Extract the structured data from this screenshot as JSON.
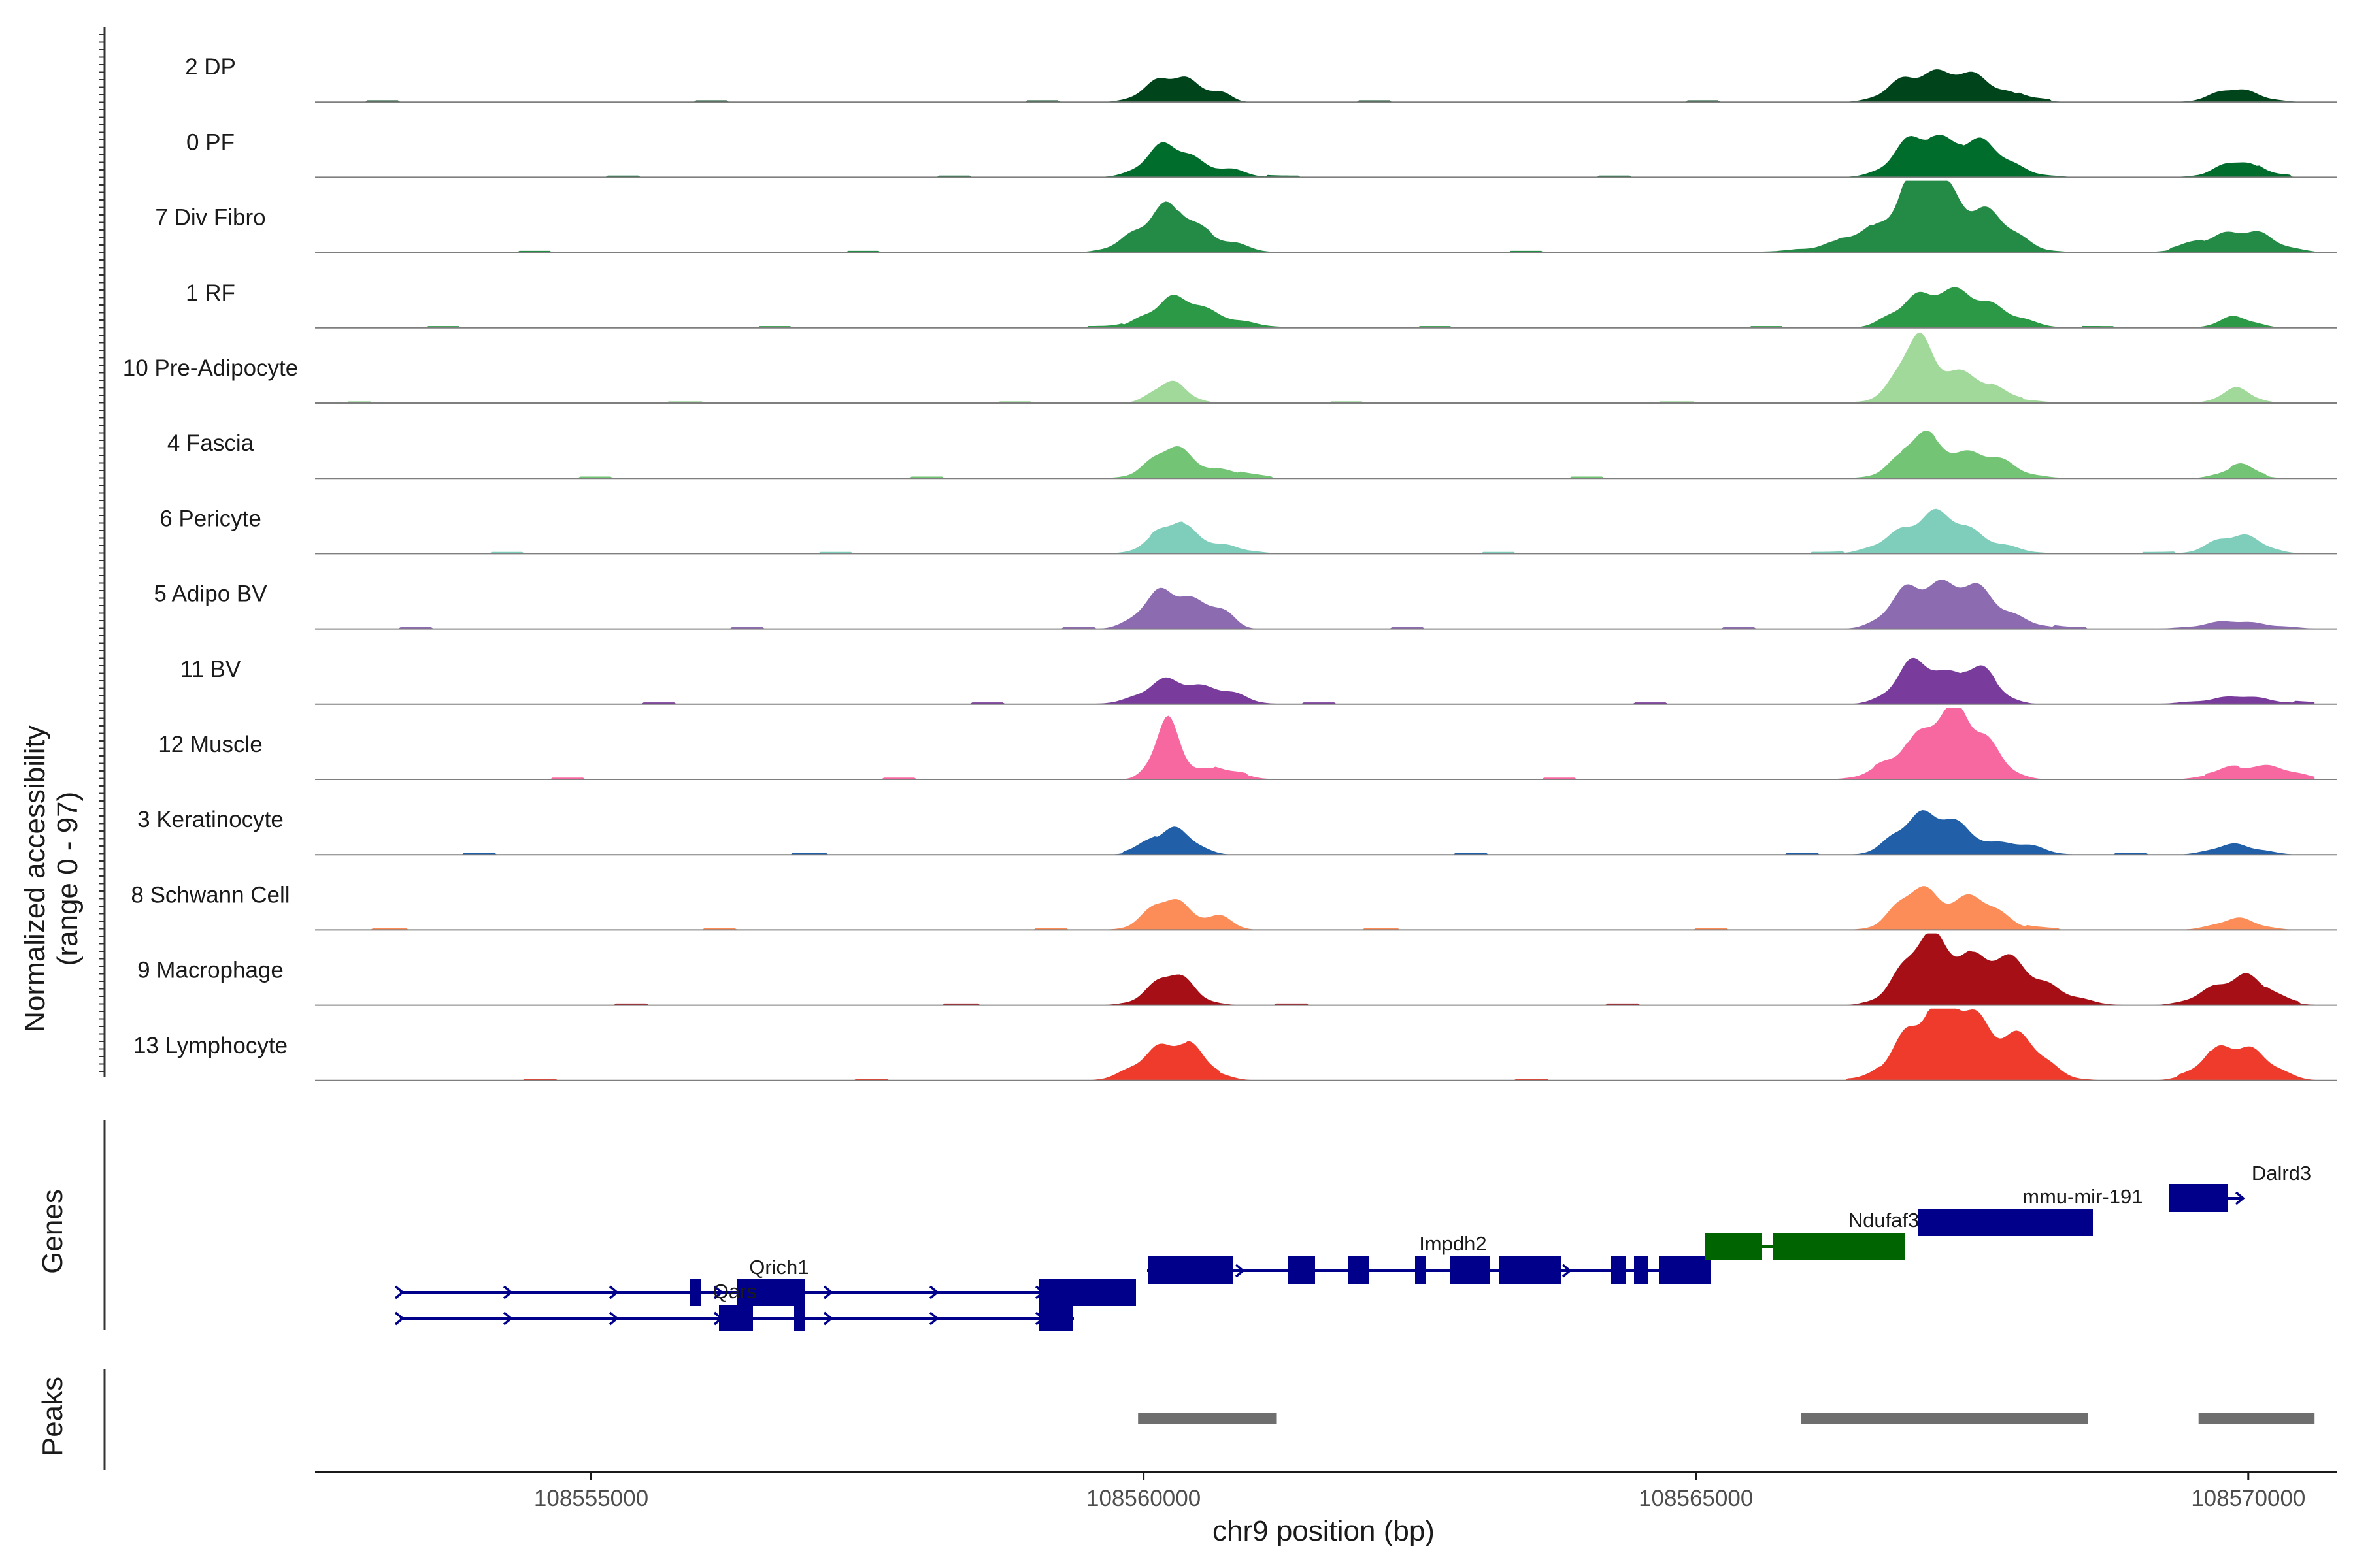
{
  "chart_data": {
    "type": "genome-browser",
    "chromosome": "chr9",
    "xlim": [
      108552500,
      108570800
    ],
    "xlabel": "chr9 position (bp)",
    "x_ticks": [
      108555000,
      108560000,
      108565000,
      108570000
    ],
    "y_title_line1": "Normalized accessibility",
    "y_title_line2": "(range 0 - 97)",
    "ylim": [
      0,
      97
    ],
    "signal_span": [
      108552800,
      108570600
    ],
    "tracks": [
      {
        "name": "2 DP",
        "color": "#00441b",
        "peaks": [
          [
            108560260,
            40,
            200
          ],
          [
            108560700,
            10,
            100
          ],
          [
            108567000,
            35,
            220
          ],
          [
            108567500,
            32,
            280
          ],
          [
            108569900,
            18,
            200
          ]
        ]
      },
      {
        "name": "0 PF",
        "color": "#006d2c",
        "peaks": [
          [
            108560260,
            44,
            220
          ],
          [
            108560800,
            8,
            150
          ],
          [
            108567000,
            42,
            220
          ],
          [
            108567500,
            45,
            300
          ],
          [
            108569900,
            20,
            200
          ]
        ]
      },
      {
        "name": "7 Div Fibro",
        "color": "#238b45",
        "peaks": [
          [
            108560180,
            58,
            250
          ],
          [
            108560700,
            15,
            200
          ],
          [
            108566850,
            28,
            500
          ],
          [
            108567000,
            70,
            200
          ],
          [
            108567500,
            55,
            300
          ],
          [
            108569900,
            30,
            300
          ]
        ]
      },
      {
        "name": "1 RF",
        "color": "#2b9945",
        "peaks": [
          [
            108560250,
            40,
            200
          ],
          [
            108560700,
            14,
            250
          ],
          [
            108567000,
            37,
            200
          ],
          [
            108567500,
            42,
            300
          ],
          [
            108569900,
            16,
            150
          ]
        ]
      },
      {
        "name": "10 Pre-Adipocyte",
        "color": "#a1d99b",
        "peaks": [
          [
            108560250,
            30,
            150
          ],
          [
            108567000,
            60,
            150
          ],
          [
            108567300,
            40,
            350
          ],
          [
            108569900,
            18,
            150
          ]
        ]
      },
      {
        "name": "4 Fascia",
        "color": "#74c476",
        "peaks": [
          [
            108560250,
            38,
            200
          ],
          [
            108560700,
            10,
            200
          ],
          [
            108567000,
            42,
            200
          ],
          [
            108567500,
            35,
            300
          ],
          [
            108569900,
            16,
            150
          ]
        ]
      },
      {
        "name": "6 Pericyte",
        "color": "#7fcdbb",
        "peaks": [
          [
            108560250,
            40,
            180
          ],
          [
            108560700,
            12,
            200
          ],
          [
            108567000,
            36,
            250
          ],
          [
            108567400,
            30,
            300
          ],
          [
            108569900,
            28,
            200
          ]
        ]
      },
      {
        "name": "5 Adipo BV",
        "color": "#8c6bb1",
        "peaks": [
          [
            108560250,
            58,
            220
          ],
          [
            108560700,
            20,
            120
          ],
          [
            108567000,
            52,
            220
          ],
          [
            108567500,
            50,
            300
          ],
          [
            108569900,
            10,
            300
          ]
        ]
      },
      {
        "name": "11 BV",
        "color": "#7a3c9c",
        "peaks": [
          [
            108560250,
            30,
            250
          ],
          [
            108560700,
            15,
            200
          ],
          [
            108567000,
            52,
            200
          ],
          [
            108567500,
            48,
            200
          ],
          [
            108569900,
            10,
            300
          ]
        ]
      },
      {
        "name": "12 Muscle",
        "color": "#f768a1",
        "peaks": [
          [
            108560200,
            75,
            120
          ],
          [
            108560650,
            15,
            200
          ],
          [
            108567000,
            48,
            250
          ],
          [
            108567450,
            85,
            220
          ],
          [
            108569900,
            16,
            200
          ],
          [
            108570300,
            12,
            200
          ]
        ]
      },
      {
        "name": "3 Keratinocyte",
        "color": "#2160a8",
        "peaks": [
          [
            108560250,
            38,
            180
          ],
          [
            108567000,
            42,
            200
          ],
          [
            108567300,
            32,
            250
          ],
          [
            108567900,
            15,
            200
          ],
          [
            108569900,
            14,
            200
          ]
        ]
      },
      {
        "name": "8 Schwann Cell",
        "color": "#fc8d59",
        "peaks": [
          [
            108560250,
            42,
            200
          ],
          [
            108560700,
            14,
            120
          ],
          [
            108567000,
            48,
            200
          ],
          [
            108567500,
            40,
            250
          ],
          [
            108569900,
            14,
            200
          ]
        ]
      },
      {
        "name": "9 Macrophage",
        "color": "#a50f15",
        "peaks": [
          [
            108560250,
            40,
            200
          ],
          [
            108567000,
            60,
            200
          ],
          [
            108567450,
            62,
            300
          ],
          [
            108568000,
            35,
            300
          ],
          [
            108569900,
            40,
            250
          ]
        ]
      },
      {
        "name": "13 Lymphocyte",
        "color": "#ef3b2c",
        "peaks": [
          [
            108560250,
            55,
            250
          ],
          [
            108567000,
            70,
            200
          ],
          [
            108567400,
            80,
            250
          ],
          [
            108567900,
            50,
            250
          ],
          [
            108569900,
            52,
            250
          ]
        ]
      }
    ],
    "genes_panel_title": "Genes",
    "peaks_panel_title": "Peaks",
    "gene_color_default": "#00008b",
    "gene_color_highlight": "#006400",
    "gene_labels": [
      {
        "text": "Qrich1",
        "x": 108556700,
        "row": "top"
      },
      {
        "text": "Qars",
        "x": 108556300,
        "row": "mid"
      },
      {
        "text": "Impdh2",
        "x": 108562800,
        "row": "top"
      },
      {
        "text": "Ndufaf3",
        "x": 108566700,
        "row": "top"
      },
      {
        "text": "mmu-mir-191",
        "x": 108568500,
        "row": "top"
      },
      {
        "text": "Dalrd3",
        "x": 108570300,
        "row": "top"
      }
    ],
    "called_peaks": [
      [
        108559950,
        108561200
      ],
      [
        108565950,
        108568550
      ],
      [
        108569550,
        108570600
      ]
    ]
  }
}
